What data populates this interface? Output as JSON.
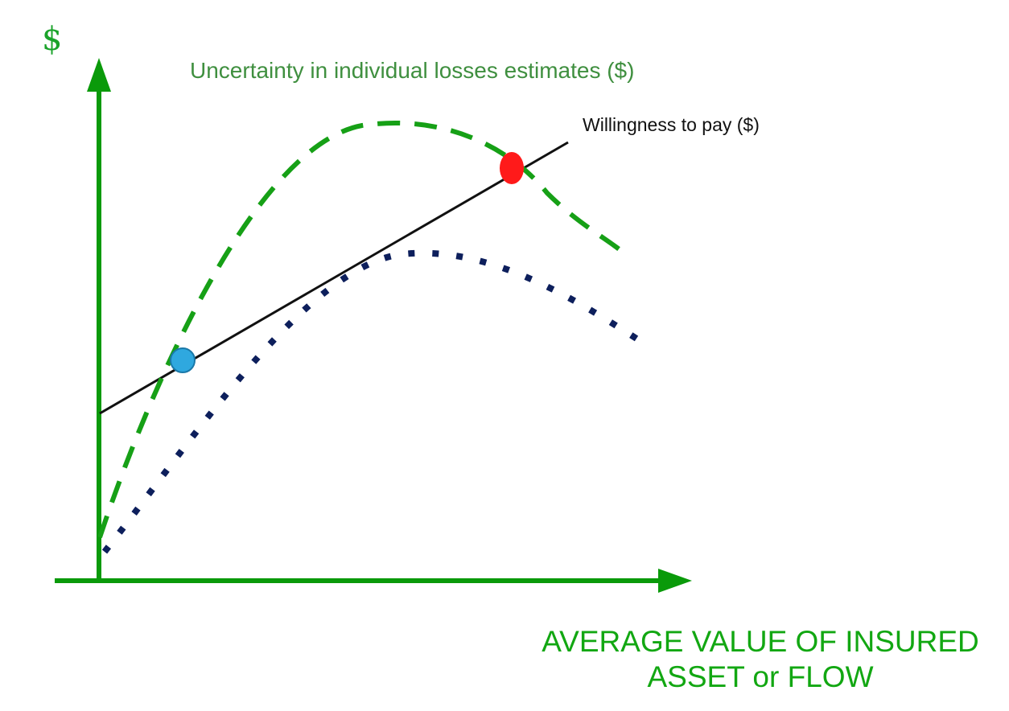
{
  "diagram": {
    "y_axis_symbol": "$",
    "x_axis_label_line1": "AVERAGE VALUE OF INSURED",
    "x_axis_label_line2": "ASSET  or FLOW",
    "uncertainty_curve_label": "Uncertainty in individual losses estimates ($)",
    "willingness_line_label": "Willingness to pay ($)"
  },
  "colors": {
    "axis": "#0a9a0a",
    "y_symbol": "#1aa32a",
    "uncertainty_label": "#3f8f3f",
    "x_label": "#12a712",
    "dashed_curve": "#16a016",
    "dotted_curve": "#0d1f5c",
    "willingness_line": "#111111",
    "left_intersection": "#2fa8df",
    "right_intersection": "#ff1a1a"
  }
}
